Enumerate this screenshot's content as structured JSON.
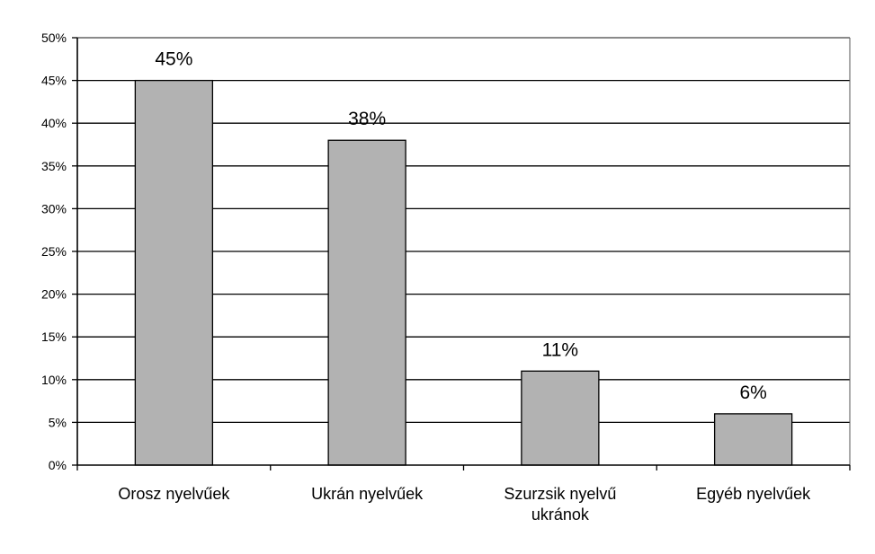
{
  "chart_data": {
    "type": "bar",
    "title": "",
    "xlabel": "",
    "ylabel": "",
    "categories": [
      [
        "Orosz nyelvűek"
      ],
      [
        "Ukrán nyelvűek"
      ],
      [
        "Szurzsik nyelvű",
        "ukránok"
      ],
      [
        "Egyéb nyelvűek"
      ]
    ],
    "values": [
      45,
      38,
      11,
      6
    ],
    "data_labels": [
      "45%",
      "38%",
      "11%",
      "6%"
    ],
    "ylim": [
      0,
      50
    ],
    "yticks": [
      0,
      5,
      10,
      15,
      20,
      25,
      30,
      35,
      40,
      45,
      50
    ],
    "ytick_labels": [
      "0%",
      "5%",
      "10%",
      "15%",
      "20%",
      "25%",
      "30%",
      "35%",
      "40%",
      "45%",
      "50%"
    ],
    "grid": "horizontal",
    "legend": "none",
    "colors": {
      "bar_fill": "#b2b2b2",
      "bar_stroke": "#000000",
      "grid": "#000000",
      "axis": "#000000",
      "background": "#ffffff"
    }
  }
}
